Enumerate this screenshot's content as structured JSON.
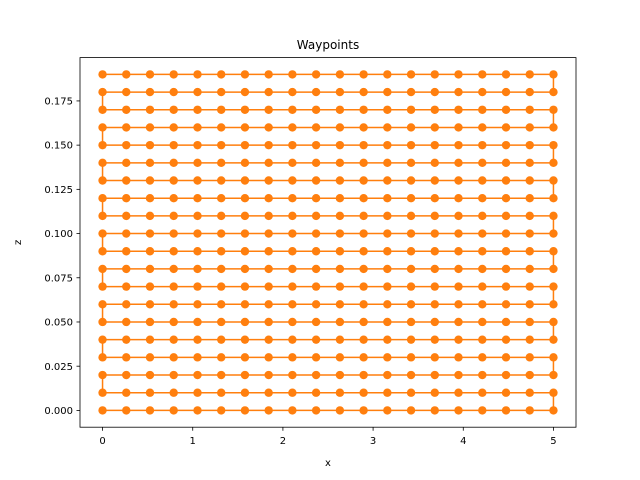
{
  "chart_data": {
    "type": "line",
    "title": "Waypoints",
    "xlabel": "x",
    "ylabel": "z",
    "xlim": [
      -0.25,
      5.25
    ],
    "ylim": [
      -0.0095,
      0.1995
    ],
    "x_ticks": [
      "0",
      "1",
      "2",
      "3",
      "4",
      "5"
    ],
    "x_tick_values": [
      0,
      1,
      2,
      3,
      4,
      5
    ],
    "y_ticks": [
      "0.000",
      "0.025",
      "0.050",
      "0.075",
      "0.100",
      "0.125",
      "0.150",
      "0.175"
    ],
    "y_tick_values": [
      0,
      0.025,
      0.05,
      0.075,
      0.1,
      0.125,
      0.15,
      0.175
    ],
    "grid": false,
    "legend": "none",
    "series_color": "#ff7f0e",
    "x": [
      0,
      0.263,
      0.526,
      0.789,
      1.053,
      1.316,
      1.579,
      1.842,
      2.105,
      2.368,
      2.632,
      2.895,
      3.158,
      3.421,
      3.684,
      3.947,
      4.211,
      4.474,
      4.737,
      5.0
    ],
    "z": [
      0,
      0.01,
      0.02,
      0.03,
      0.04,
      0.05,
      0.06,
      0.07,
      0.08,
      0.09,
      0.1,
      0.11,
      0.12,
      0.13,
      0.14,
      0.15,
      0.16,
      0.17,
      0.18,
      0.19
    ],
    "path": "serpentine"
  }
}
